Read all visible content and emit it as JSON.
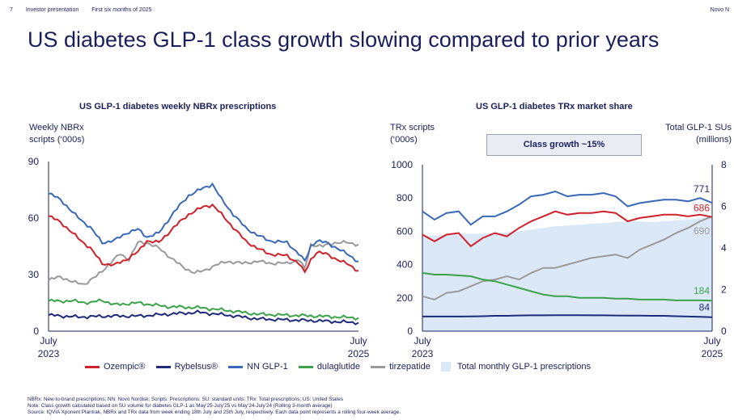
{
  "header": {
    "page_number": "7",
    "section": "Investor presentation",
    "period": "First six months of 2025",
    "brand": "Novo N"
  },
  "title": "US diabetes GLP-1 class growth slowing compared to prior years",
  "left_chart": {
    "title": "US GLP-1 diabetes weekly NBRx prescriptions",
    "ylabel_line1": "Weekly NBRx",
    "ylabel_line2": "scripts (‘000s)"
  },
  "right_chart": {
    "title": "US GLP-1 diabetes TRx market share",
    "ylabel_left_line1": "TRx scripts",
    "ylabel_left_line2": "(‘000s)",
    "ylabel_right_line1": "Total GLP-1 SUs",
    "ylabel_right_line2": "(millions)",
    "callout": "Class growth ~15%"
  },
  "legend": {
    "ozempic": "Ozempic®",
    "rybelsus": "Rybelsus®",
    "nn": "NN GLP-1",
    "dulaglutide": "dulaglutide",
    "tirzepatide": "tirzepatide",
    "total": "Total monthly GLP-1 prescriptions"
  },
  "colors": {
    "ozempic": "#d0202a",
    "rybelsus": "#1f2a7a",
    "nn": "#3a68b8",
    "dulaglutide": "#3aa34a",
    "tirzepatide": "#9a9a9a",
    "total_fill": "#dbe8f8",
    "axis": "#1a1f5c"
  },
  "notes": [
    "NBRx: New-to-brand prescriptions; NN: Novo Nordisk; Scripts: Prescriptions; SU: standard units; TRx: Total prescriptions; US: United States",
    "Note: Class growth calculated based on SU volume for diabetes GLP-1 as May’25-July’25 vs May’24-July’24 (Rolling 3-month average)",
    "Source: IQVIA Xponent Plantrak, NBRx and TRx data from week ending 18th July and 25th July, respectively. Each data point represents a rolling four-week average."
  ],
  "chart_data": [
    {
      "type": "line",
      "title": "US GLP-1 diabetes weekly NBRx prescriptions",
      "ylabel": "Weekly NBRx scripts (‘000s)",
      "ylim": [
        0,
        90
      ],
      "yticks": [
        0,
        30,
        60,
        90
      ],
      "x_tick_labels": [
        [
          "July",
          "2023"
        ],
        [
          "July",
          "2025"
        ]
      ],
      "x_points": 105,
      "series": [
        {
          "name": "Ozempic®",
          "key": "ozempic",
          "anchors": [
            [
              0,
              61
            ],
            [
              4,
              58
            ],
            [
              8,
              52
            ],
            [
              14,
              44
            ],
            [
              18,
              36
            ],
            [
              22,
              35
            ],
            [
              26,
              38
            ],
            [
              30,
              42
            ],
            [
              33,
              48
            ],
            [
              37,
              47
            ],
            [
              42,
              55
            ],
            [
              47,
              62
            ],
            [
              52,
              66
            ],
            [
              55,
              67
            ],
            [
              58,
              62
            ],
            [
              62,
              55
            ],
            [
              66,
              48
            ],
            [
              70,
              44
            ],
            [
              74,
              41
            ],
            [
              80,
              40
            ],
            [
              84,
              36
            ],
            [
              86,
              31
            ],
            [
              88,
              38
            ],
            [
              90,
              42
            ],
            [
              93,
              41
            ],
            [
              97,
              38
            ],
            [
              101,
              35
            ],
            [
              104,
              32
            ]
          ]
        },
        {
          "name": "Rybelsus®",
          "key": "rybelsus",
          "anchors": [
            [
              0,
              8.5
            ],
            [
              10,
              7.5
            ],
            [
              20,
              8
            ],
            [
              30,
              8
            ],
            [
              40,
              9
            ],
            [
              50,
              10
            ],
            [
              60,
              8.5
            ],
            [
              70,
              6.5
            ],
            [
              80,
              6
            ],
            [
              90,
              5.5
            ],
            [
              104,
              4.5
            ]
          ]
        },
        {
          "name": "NN GLP-1",
          "key": "nn",
          "anchors": [
            [
              0,
              73
            ],
            [
              4,
              70
            ],
            [
              8,
              63
            ],
            [
              14,
              55
            ],
            [
              18,
              47
            ],
            [
              22,
              48
            ],
            [
              26,
              52
            ],
            [
              30,
              54
            ],
            [
              33,
              50
            ],
            [
              37,
              52
            ],
            [
              42,
              63
            ],
            [
              47,
              72
            ],
            [
              52,
              76
            ],
            [
              55,
              78
            ],
            [
              58,
              70
            ],
            [
              62,
              62
            ],
            [
              66,
              55
            ],
            [
              70,
              51
            ],
            [
              74,
              48
            ],
            [
              80,
              47
            ],
            [
              84,
              41
            ],
            [
              86,
              37
            ],
            [
              88,
              45
            ],
            [
              90,
              48
            ],
            [
              93,
              47
            ],
            [
              97,
              44
            ],
            [
              101,
              40
            ],
            [
              104,
              37
            ]
          ]
        },
        {
          "name": "dulaglutide",
          "key": "dulaglutide",
          "anchors": [
            [
              0,
              16
            ],
            [
              8,
              16
            ],
            [
              14,
              15
            ],
            [
              18,
              16.5
            ],
            [
              22,
              14
            ],
            [
              30,
              15
            ],
            [
              40,
              13
            ],
            [
              50,
              12.5
            ],
            [
              60,
              11
            ],
            [
              70,
              9
            ],
            [
              80,
              8.5
            ],
            [
              90,
              8
            ],
            [
              104,
              7
            ]
          ]
        },
        {
          "name": "tirzepatide",
          "key": "tirzepatide",
          "anchors": [
            [
              0,
              27
            ],
            [
              4,
              29
            ],
            [
              8,
              26
            ],
            [
              12,
              25
            ],
            [
              16,
              29
            ],
            [
              20,
              35
            ],
            [
              24,
              41
            ],
            [
              27,
              38
            ],
            [
              30,
              47
            ],
            [
              33,
              47
            ],
            [
              37,
              44
            ],
            [
              41,
              39
            ],
            [
              45,
              34
            ],
            [
              49,
              31
            ],
            [
              52,
              32
            ],
            [
              56,
              35
            ],
            [
              60,
              37
            ],
            [
              65,
              36
            ],
            [
              70,
              37
            ],
            [
              75,
              36
            ],
            [
              80,
              36
            ],
            [
              84,
              38
            ],
            [
              86,
              33
            ],
            [
              88,
              46
            ],
            [
              92,
              45
            ],
            [
              96,
              47
            ],
            [
              100,
              47
            ],
            [
              104,
              46
            ]
          ]
        }
      ]
    },
    {
      "type": "line",
      "title": "US GLP-1 diabetes TRx market share",
      "ylabel": "TRx scripts (‘000s)",
      "ylabel_right": "Total GLP-1 SUs (millions)",
      "ylim": [
        0,
        1000
      ],
      "yticks": [
        0,
        200,
        400,
        600,
        800,
        1000
      ],
      "y2lim": [
        0,
        8
      ],
      "y2ticks": [
        0,
        2,
        4,
        6,
        8
      ],
      "x_tick_labels": [
        [
          "July",
          "2023"
        ],
        [
          "July",
          "2025"
        ]
      ],
      "x_points": 25,
      "series": [
        {
          "name": "Total monthly GLP-1 prescriptions",
          "key": "total",
          "values": [
            570,
            575,
            580,
            585,
            585,
            585,
            590,
            595,
            600,
            610,
            620,
            630,
            635,
            640,
            645,
            650,
            655,
            660,
            660,
            655,
            660,
            665,
            670,
            680,
            690
          ]
        },
        {
          "name": "NN GLP-1",
          "key": "nn",
          "values": [
            720,
            670,
            710,
            720,
            640,
            690,
            690,
            720,
            760,
            810,
            820,
            840,
            810,
            820,
            820,
            830,
            810,
            750,
            770,
            780,
            790,
            790,
            780,
            800,
            771
          ]
        },
        {
          "name": "Ozempic®",
          "key": "ozempic",
          "values": [
            580,
            540,
            580,
            590,
            510,
            560,
            590,
            570,
            620,
            660,
            690,
            720,
            700,
            710,
            710,
            720,
            710,
            660,
            680,
            690,
            700,
            700,
            690,
            700,
            686
          ]
        },
        {
          "name": "tirzepatide",
          "key": "tirzepatide",
          "values": [
            210,
            190,
            230,
            240,
            270,
            300,
            310,
            330,
            310,
            350,
            380,
            380,
            400,
            420,
            440,
            450,
            460,
            440,
            490,
            520,
            550,
            590,
            620,
            660,
            690
          ]
        },
        {
          "name": "dulaglutide",
          "key": "dulaglutide",
          "values": [
            350,
            340,
            340,
            335,
            330,
            310,
            300,
            280,
            260,
            240,
            220,
            210,
            210,
            200,
            200,
            200,
            195,
            195,
            190,
            190,
            190,
            185,
            185,
            185,
            184
          ]
        },
        {
          "name": "Rybelsus®",
          "key": "rybelsus",
          "values": [
            88,
            88,
            88,
            88,
            89,
            90,
            92,
            92,
            94,
            95,
            95,
            96,
            96,
            96,
            95,
            95,
            94,
            93,
            93,
            92,
            92,
            90,
            88,
            86,
            84
          ]
        }
      ],
      "end_labels": [
        {
          "key": "nn",
          "text": "771"
        },
        {
          "key": "ozempic",
          "text": "686"
        },
        {
          "key": "tirzepatide",
          "text": "690"
        },
        {
          "key": "dulaglutide",
          "text": "184"
        },
        {
          "key": "rybelsus",
          "text": "84"
        }
      ]
    }
  ]
}
